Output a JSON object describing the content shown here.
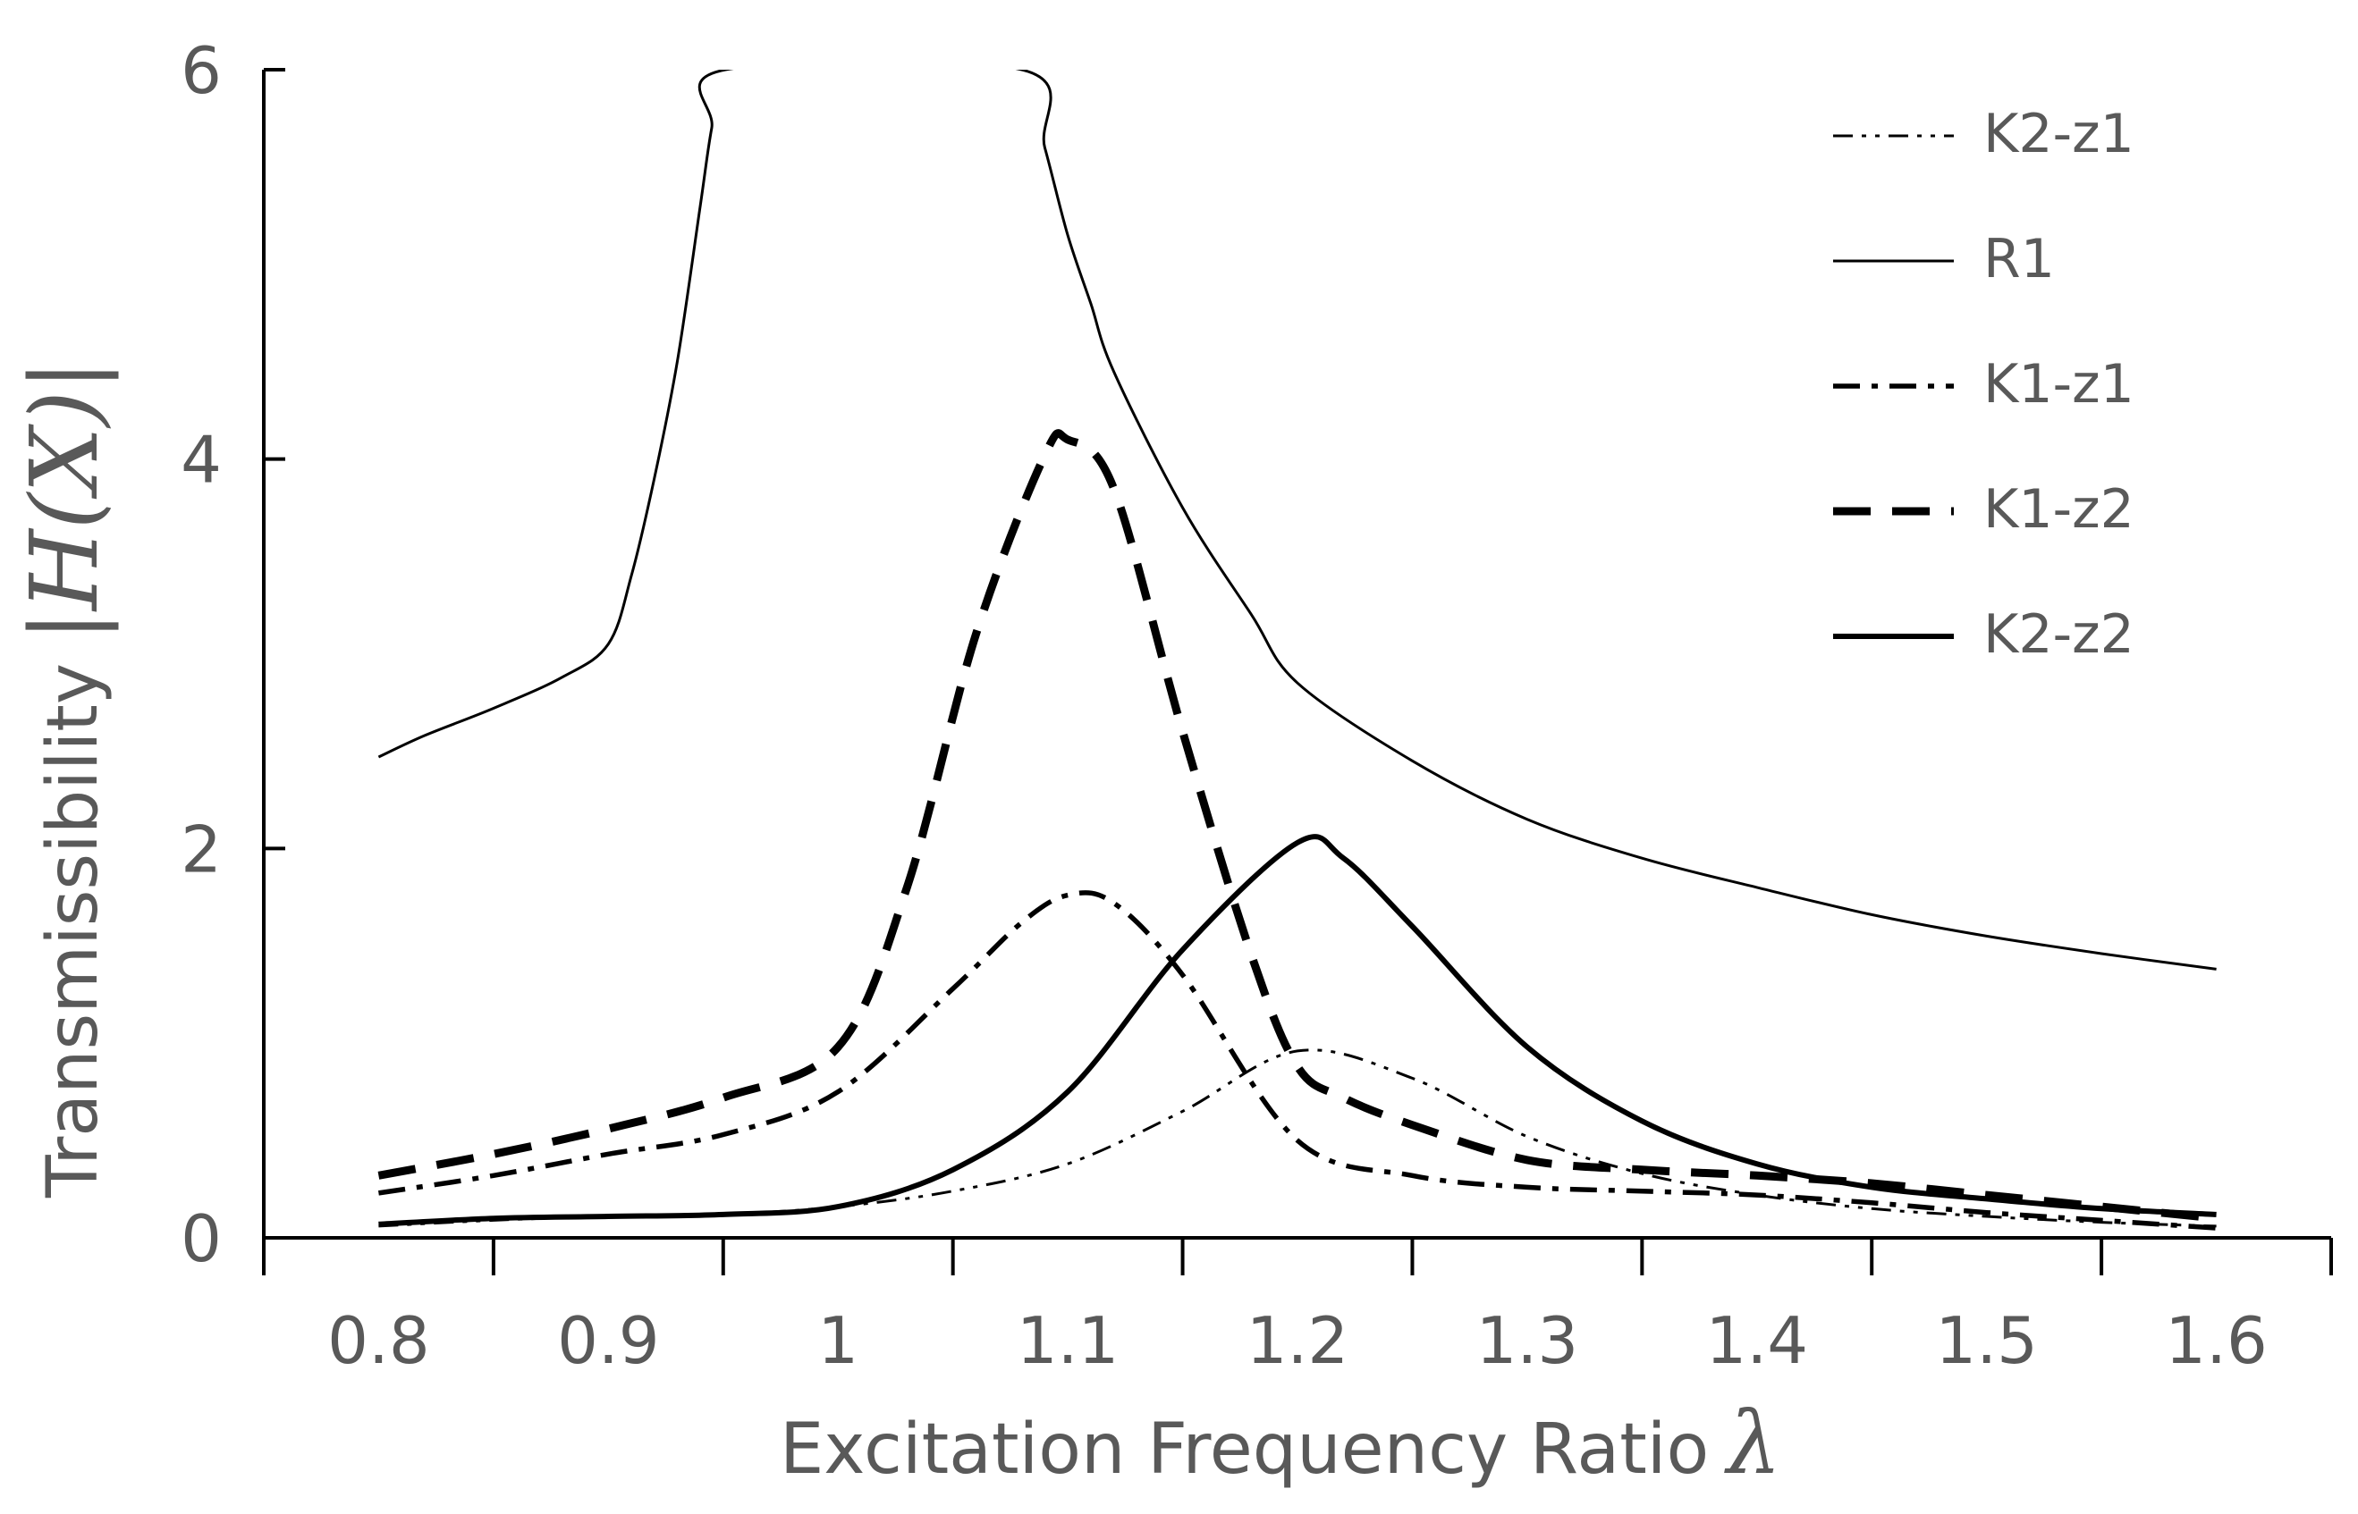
{
  "chart_data": {
    "type": "line",
    "title": "",
    "xlabel": "Excitation Frequency Ratio",
    "xlabel_symbol": "λ",
    "ylabel": "Transmissibility",
    "ylabel_symbol": "|H(X)|",
    "xlim": [
      0.75,
      1.65
    ],
    "ylim": [
      0,
      6
    ],
    "xticks": [
      "0.8",
      "0.9",
      "1",
      "1.1",
      "1.2",
      "1.3",
      "1.4",
      "1.5",
      "1.6"
    ],
    "xtick_values": [
      0.8,
      0.9,
      1.0,
      1.1,
      1.2,
      1.3,
      1.4,
      1.5,
      1.6
    ],
    "yticks": [
      "0",
      "2",
      "4",
      "6"
    ],
    "ytick_values": [
      0,
      2,
      4,
      6
    ],
    "grid": false,
    "legend_position": "top-right",
    "series": [
      {
        "name": "K2-z1",
        "style": "dash-dot-dot",
        "weight": "thin",
        "x": [
          0.8,
          0.85,
          0.9,
          0.95,
          1.0,
          1.05,
          1.1,
          1.15,
          1.2,
          1.25,
          1.3,
          1.35,
          1.4,
          1.45,
          1.5,
          1.55,
          1.6
        ],
        "y": [
          0.06,
          0.09,
          0.11,
          0.12,
          0.16,
          0.24,
          0.38,
          0.65,
          0.96,
          0.82,
          0.52,
          0.33,
          0.22,
          0.15,
          0.11,
          0.08,
          0.06
        ]
      },
      {
        "name": "R1",
        "style": "solid",
        "weight": "thin",
        "x": [
          0.8,
          0.82,
          0.85,
          0.88,
          0.9,
          0.91,
          0.92,
          0.93,
          0.94,
          0.945,
          0.951,
          1.08,
          1.09,
          1.1,
          1.11,
          1.12,
          1.15,
          1.18,
          1.2,
          1.25,
          1.3,
          1.35,
          1.4,
          1.45,
          1.5,
          1.55,
          1.6
        ],
        "y": [
          2.47,
          2.58,
          2.72,
          2.88,
          3.05,
          3.4,
          3.9,
          4.5,
          5.3,
          5.7,
          6.0,
          6.0,
          5.6,
          5.15,
          4.8,
          4.45,
          3.75,
          3.2,
          2.85,
          2.45,
          2.15,
          1.95,
          1.8,
          1.66,
          1.55,
          1.46,
          1.38
        ]
      },
      {
        "name": "K1-z1",
        "style": "dash-dot",
        "weight": "medium",
        "x": [
          0.8,
          0.85,
          0.9,
          0.95,
          1.0,
          1.05,
          1.08,
          1.1,
          1.12,
          1.15,
          1.2,
          1.25,
          1.3,
          1.35,
          1.4,
          1.45,
          1.5,
          1.55,
          1.6
        ],
        "y": [
          0.23,
          0.32,
          0.43,
          0.53,
          0.75,
          1.28,
          1.62,
          1.76,
          1.72,
          1.35,
          0.5,
          0.32,
          0.26,
          0.24,
          0.22,
          0.18,
          0.13,
          0.09,
          0.05
        ]
      },
      {
        "name": "K1-z2",
        "style": "dashed",
        "weight": "thick",
        "x": [
          0.8,
          0.85,
          0.9,
          0.95,
          1.0,
          1.03,
          1.06,
          1.09,
          1.1,
          1.12,
          1.15,
          1.18,
          1.2,
          1.22,
          1.25,
          1.3,
          1.35,
          1.4,
          1.45,
          1.5,
          1.55,
          1.6
        ],
        "y": [
          0.32,
          0.43,
          0.56,
          0.72,
          0.98,
          1.8,
          3.1,
          4.02,
          4.1,
          3.85,
          2.6,
          1.45,
          0.88,
          0.72,
          0.58,
          0.4,
          0.35,
          0.32,
          0.28,
          0.22,
          0.16,
          0.1
        ]
      },
      {
        "name": "K2-z2",
        "style": "solid",
        "weight": "thick",
        "x": [
          0.8,
          0.85,
          0.9,
          0.95,
          1.0,
          1.05,
          1.1,
          1.15,
          1.2,
          1.22,
          1.25,
          1.3,
          1.35,
          1.4,
          1.45,
          1.5,
          1.55,
          1.6
        ],
        "y": [
          0.07,
          0.1,
          0.11,
          0.12,
          0.16,
          0.35,
          0.75,
          1.48,
          2.03,
          1.95,
          1.6,
          0.98,
          0.6,
          0.38,
          0.26,
          0.2,
          0.15,
          0.12
        ]
      }
    ]
  }
}
